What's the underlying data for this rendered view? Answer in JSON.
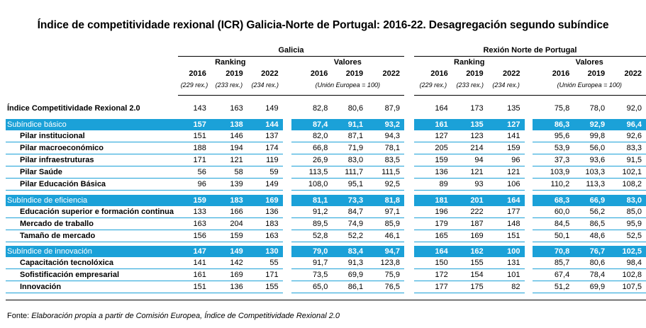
{
  "title": "Índice de competitividade rexional (ICR) Galicia-Norte de Portugal:  2016-22. Desagregación segundo subíndice",
  "headers": {
    "galicia": "Galicia",
    "norte": "Rexión Norte de Portugal",
    "ranking": "Ranking",
    "valores": "Valores",
    "years": [
      "2016",
      "2019",
      "2022"
    ],
    "rex_notes": [
      "(229 rex.)",
      "(233 rex.)",
      "(234 rex.)"
    ],
    "ue_note": "(Unión Europea = 100)"
  },
  "total": {
    "label": "Índice Competitividade Rexional 2.0",
    "values": [
      "143",
      "163",
      "149",
      "82,8",
      "80,6",
      "87,9",
      "164",
      "173",
      "135",
      "75,8",
      "78,0",
      "92,0"
    ]
  },
  "sections": [
    {
      "label": "Subíndice básico",
      "values": [
        "157",
        "138",
        "144",
        "87,4",
        "91,1",
        "93,2",
        "161",
        "135",
        "127",
        "86,3",
        "92,9",
        "96,4"
      ],
      "items": [
        {
          "label": "Pilar institucional",
          "values": [
            "151",
            "146",
            "137",
            "82,0",
            "87,1",
            "94,3",
            "127",
            "123",
            "141",
            "95,6",
            "99,8",
            "92,6"
          ]
        },
        {
          "label": "Pilar macroeconómico",
          "values": [
            "188",
            "194",
            "174",
            "66,8",
            "71,9",
            "78,1",
            "205",
            "214",
            "159",
            "53,9",
            "56,0",
            "83,3"
          ]
        },
        {
          "label": "Pilar infraestruturas",
          "values": [
            "171",
            "121",
            "119",
            "26,9",
            "83,0",
            "83,5",
            "159",
            "94",
            "96",
            "37,3",
            "93,6",
            "91,5"
          ]
        },
        {
          "label": "Pilar Saúde",
          "values": [
            "56",
            "58",
            "59",
            "113,5",
            "111,7",
            "111,5",
            "136",
            "121",
            "121",
            "103,9",
            "103,3",
            "102,1"
          ]
        },
        {
          "label": "Pilar Educación Básica",
          "values": [
            "96",
            "139",
            "149",
            "108,0",
            "95,1",
            "92,5",
            "89",
            "93",
            "106",
            "110,2",
            "113,3",
            "108,2"
          ]
        }
      ]
    },
    {
      "label": "Subíndice de eficiencia",
      "values": [
        "159",
        "183",
        "169",
        "81,1",
        "73,3",
        "81,8",
        "181",
        "201",
        "164",
        "68,3",
        "66,9",
        "83,0"
      ],
      "items": [
        {
          "label": "Educación superior e formación continua",
          "values": [
            "133",
            "166",
            "136",
            "91,2",
            "84,7",
            "97,1",
            "196",
            "222",
            "177",
            "60,0",
            "56,2",
            "85,0"
          ]
        },
        {
          "label": "Mercado de traballo",
          "values": [
            "163",
            "204",
            "183",
            "89,5",
            "74,9",
            "85,9",
            "179",
            "187",
            "148",
            "84,5",
            "86,5",
            "95,9"
          ]
        },
        {
          "label": "Tamaño de mercado",
          "values": [
            "156",
            "159",
            "163",
            "52,8",
            "52,2",
            "46,1",
            "165",
            "169",
            "151",
            "50,1",
            "48,6",
            "52,5"
          ]
        }
      ]
    },
    {
      "label": "Subíndice de innovación",
      "values": [
        "147",
        "149",
        "130",
        "79,0",
        "83,4",
        "94,7",
        "164",
        "162",
        "100",
        "70,8",
        "76,7",
        "102,5"
      ],
      "items": [
        {
          "label": "Capacitación tecnolóxica",
          "values": [
            "141",
            "142",
            "55",
            "91,7",
            "91,3",
            "123,8",
            "150",
            "155",
            "131",
            "85,7",
            "80,6",
            "98,4"
          ]
        },
        {
          "label": "Sofistificación empresarial",
          "values": [
            "161",
            "169",
            "171",
            "73,5",
            "69,9",
            "75,9",
            "172",
            "154",
            "101",
            "67,4",
            "78,4",
            "102,8"
          ]
        },
        {
          "label": "Innovación",
          "values": [
            "151",
            "136",
            "155",
            "65,0",
            "86,1",
            "76,5",
            "177",
            "175",
            "82",
            "51,2",
            "69,9",
            "107,5"
          ]
        }
      ]
    }
  ],
  "footer": {
    "prefix": "Fonte: ",
    "text": "Elaboración propia a partir de Comisión Europea, Índice de Competitividade Rexional 2.0"
  },
  "colors": {
    "accent": "#1ba1d8"
  }
}
